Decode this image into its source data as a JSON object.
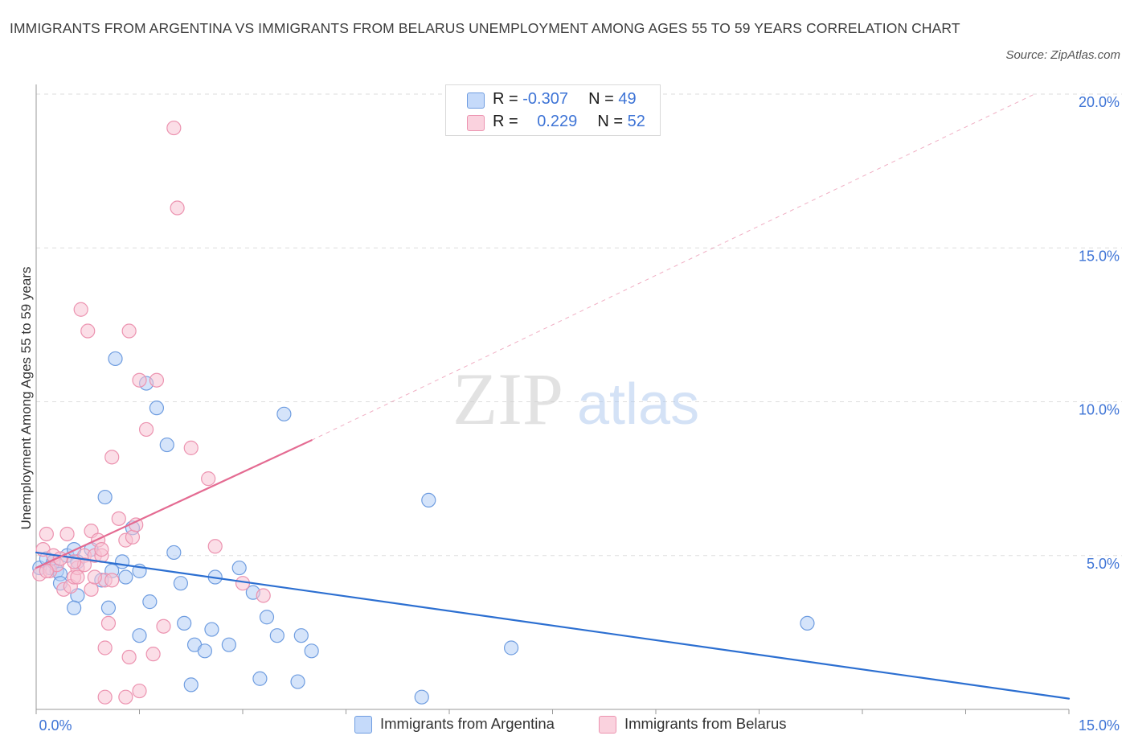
{
  "title": "IMMIGRANTS FROM ARGENTINA VS IMMIGRANTS FROM BELARUS UNEMPLOYMENT AMONG AGES 55 TO 59 YEARS CORRELATION CHART",
  "source": "Source: ZipAtlas.com",
  "watermark": {
    "zip": "ZIP",
    "atlas": "atlas"
  },
  "legend": {
    "argentina": {
      "r_label": "R =",
      "r_value": "-0.307",
      "n_label": "N =",
      "n_value": "49"
    },
    "belarus": {
      "r_label": "R =",
      "r_value": "0.229",
      "n_label": "N =",
      "n_value": "52"
    }
  },
  "colors": {
    "argentina_fill": "#b3cef5",
    "argentina_stroke": "#6f9de0",
    "argentina_line": "#2c6fd1",
    "belarus_fill": "#f7c3d3",
    "belarus_stroke": "#ec93b0",
    "belarus_line": "#e46b92",
    "axis_text": "#3e74d6",
    "grid": "#dedede"
  },
  "chart_data": {
    "type": "scatter",
    "title": "IMMIGRANTS FROM ARGENTINA VS IMMIGRANTS FROM BELARUS UNEMPLOYMENT AMONG AGES 55 TO 59 YEARS CORRELATION CHART",
    "xlabel": "",
    "ylabel": "Unemployment Among Ages 55 to 59 years",
    "xlim": [
      0,
      15
    ],
    "ylim": [
      0,
      20
    ],
    "x_tick_labels": [
      "0.0%",
      "15.0%"
    ],
    "y_tick_labels": [
      "5.0%",
      "10.0%",
      "15.0%",
      "20.0%"
    ],
    "y_ticks": [
      5,
      10,
      15,
      20
    ],
    "legend_position": "top-center",
    "series": [
      {
        "name": "Immigrants from Argentina",
        "r": -0.307,
        "n": 49,
        "trend": {
          "x0": 0.0,
          "y0": 5.1,
          "x1": 15.0,
          "y1": 0.35,
          "dashed_extension": false
        },
        "points": [
          [
            0.05,
            4.6
          ],
          [
            0.15,
            4.9
          ],
          [
            0.2,
            4.6
          ],
          [
            0.25,
            4.8
          ],
          [
            0.3,
            4.5
          ],
          [
            0.35,
            4.4
          ],
          [
            0.45,
            5.0
          ],
          [
            0.55,
            5.2
          ],
          [
            0.6,
            4.8
          ],
          [
            0.8,
            5.2
          ],
          [
            0.35,
            4.1
          ],
          [
            0.6,
            3.7
          ],
          [
            0.55,
            3.3
          ],
          [
            0.95,
            4.2
          ],
          [
            1.05,
            3.3
          ],
          [
            1.1,
            4.5
          ],
          [
            1.15,
            11.4
          ],
          [
            1.25,
            4.8
          ],
          [
            1.3,
            4.3
          ],
          [
            1.4,
            5.9
          ],
          [
            1.5,
            4.5
          ],
          [
            1.5,
            2.4
          ],
          [
            1.6,
            10.6
          ],
          [
            1.65,
            3.5
          ],
          [
            1.75,
            9.8
          ],
          [
            1.9,
            8.6
          ],
          [
            2.0,
            5.1
          ],
          [
            2.1,
            4.1
          ],
          [
            2.15,
            2.8
          ],
          [
            2.25,
            0.8
          ],
          [
            2.3,
            2.1
          ],
          [
            2.45,
            1.9
          ],
          [
            2.55,
            2.6
          ],
          [
            2.6,
            4.3
          ],
          [
            2.8,
            2.1
          ],
          [
            2.95,
            4.6
          ],
          [
            3.15,
            3.8
          ],
          [
            3.25,
            1.0
          ],
          [
            3.35,
            3.0
          ],
          [
            3.5,
            2.4
          ],
          [
            3.6,
            9.6
          ],
          [
            3.8,
            0.9
          ],
          [
            3.85,
            2.4
          ],
          [
            4.0,
            1.9
          ],
          [
            5.6,
            0.4
          ],
          [
            5.7,
            6.8
          ],
          [
            6.9,
            2.0
          ],
          [
            11.2,
            2.8
          ],
          [
            1.0,
            6.9
          ]
        ]
      },
      {
        "name": "Immigrants from Belarus",
        "r": 0.229,
        "n": 52,
        "trend": {
          "x0": 0.0,
          "y0": 4.6,
          "x1": 4.0,
          "y1": 8.75,
          "dashed_extension": true,
          "dash_to": [
            14.5,
            20.0
          ]
        },
        "points": [
          [
            0.05,
            4.4
          ],
          [
            0.1,
            5.2
          ],
          [
            0.15,
            5.7
          ],
          [
            0.2,
            4.5
          ],
          [
            0.25,
            5.0
          ],
          [
            0.3,
            4.7
          ],
          [
            0.4,
            3.9
          ],
          [
            0.45,
            5.7
          ],
          [
            0.5,
            4.0
          ],
          [
            0.55,
            4.3
          ],
          [
            0.6,
            4.6
          ],
          [
            0.65,
            13.0
          ],
          [
            0.7,
            5.0
          ],
          [
            0.75,
            12.3
          ],
          [
            0.8,
            5.8
          ],
          [
            0.8,
            3.9
          ],
          [
            0.85,
            5.0
          ],
          [
            0.9,
            5.5
          ],
          [
            0.95,
            5.0
          ],
          [
            1.0,
            4.2
          ],
          [
            1.05,
            2.8
          ],
          [
            1.0,
            2.0
          ],
          [
            1.1,
            8.2
          ],
          [
            1.2,
            6.2
          ],
          [
            1.3,
            5.5
          ],
          [
            1.35,
            12.3
          ],
          [
            1.4,
            5.6
          ],
          [
            1.45,
            6.0
          ],
          [
            1.5,
            10.7
          ],
          [
            1.6,
            9.1
          ],
          [
            1.75,
            10.7
          ],
          [
            1.85,
            2.7
          ],
          [
            2.0,
            18.9
          ],
          [
            2.05,
            16.3
          ],
          [
            2.25,
            8.5
          ],
          [
            2.5,
            7.5
          ],
          [
            2.6,
            5.3
          ],
          [
            3.0,
            4.1
          ],
          [
            3.3,
            3.7
          ],
          [
            1.0,
            0.4
          ],
          [
            1.3,
            0.4
          ],
          [
            1.5,
            0.6
          ],
          [
            1.35,
            1.7
          ],
          [
            1.7,
            1.8
          ],
          [
            0.7,
            4.7
          ],
          [
            0.6,
            4.3
          ],
          [
            0.85,
            4.3
          ],
          [
            0.35,
            4.9
          ],
          [
            0.15,
            4.5
          ],
          [
            1.1,
            4.2
          ],
          [
            0.95,
            5.2
          ],
          [
            0.55,
            4.8
          ]
        ]
      }
    ]
  },
  "bottom_legend": {
    "argentina": "Immigrants from Argentina",
    "belarus": "Immigrants from Belarus"
  }
}
